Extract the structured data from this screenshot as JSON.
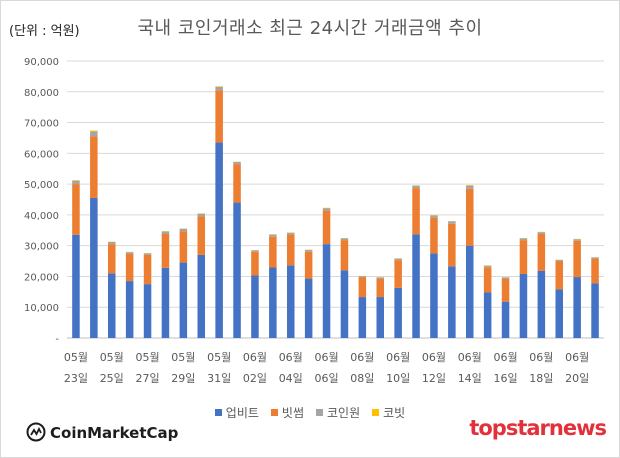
{
  "unit_label": "(단위 : 억원)",
  "chart_data": {
    "type": "bar",
    "stacked": true,
    "title": "국내 코인거래소 최근 24시간 거래금액 추이",
    "xlabel": "",
    "ylabel": "",
    "ylim": [
      0,
      90000
    ],
    "yticks": [
      "-",
      "10,000",
      "20,000",
      "30,000",
      "40,000",
      "50,000",
      "60,000",
      "70,000",
      "80,000",
      "90,000"
    ],
    "grid": true,
    "legend_position": "bottom",
    "x_tick_labels": [
      {
        "month": "05월",
        "day": "23일"
      },
      {
        "month": "05월",
        "day": "25일"
      },
      {
        "month": "05월",
        "day": "27일"
      },
      {
        "month": "05월",
        "day": "29일"
      },
      {
        "month": "05월",
        "day": "31일"
      },
      {
        "month": "06월",
        "day": "02일"
      },
      {
        "month": "06월",
        "day": "04일"
      },
      {
        "month": "06월",
        "day": "06일"
      },
      {
        "month": "06월",
        "day": "08일"
      },
      {
        "month": "06월",
        "day": "10일"
      },
      {
        "month": "06월",
        "day": "12일"
      },
      {
        "month": "06월",
        "day": "14일"
      },
      {
        "month": "06월",
        "day": "16일"
      },
      {
        "month": "06월",
        "day": "18일"
      },
      {
        "month": "06월",
        "day": "20일"
      }
    ],
    "categories": [
      "05-23",
      "05-24",
      "05-25",
      "05-26",
      "05-27",
      "05-28",
      "05-29",
      "05-30",
      "05-31",
      "06-01",
      "06-02",
      "06-03",
      "06-04",
      "06-05",
      "06-06",
      "06-07",
      "06-08",
      "06-09",
      "06-10",
      "06-11",
      "06-12",
      "06-13",
      "06-14",
      "06-15",
      "06-16",
      "06-17",
      "06-18",
      "06-19",
      "06-20",
      "06-21"
    ],
    "series": [
      {
        "name": "업비트",
        "color": "#4472c4",
        "values": [
          33500,
          45500,
          21000,
          18500,
          17500,
          22800,
          24500,
          27000,
          63500,
          44000,
          20300,
          22900,
          23600,
          19300,
          30500,
          22000,
          13300,
          13300,
          16300,
          33700,
          27500,
          23300,
          30000,
          14800,
          11800,
          20800,
          21800,
          15800,
          19800,
          17800
        ]
      },
      {
        "name": "빗썸",
        "color": "#ed7d31",
        "values": [
          16500,
          20000,
          9500,
          8800,
          9500,
          11000,
          10200,
          12500,
          17000,
          12500,
          7700,
          10000,
          10000,
          8700,
          11000,
          9800,
          6500,
          6000,
          9000,
          15000,
          11600,
          13800,
          18500,
          8200,
          7500,
          11000,
          12000,
          9200,
          11800,
          8000
        ]
      },
      {
        "name": "코인원",
        "color": "#a5a5a5",
        "values": [
          1100,
          1600,
          700,
          600,
          500,
          800,
          800,
          900,
          1100,
          700,
          500,
          700,
          600,
          600,
          700,
          600,
          300,
          400,
          500,
          800,
          700,
          800,
          1000,
          500,
          400,
          600,
          600,
          400,
          500,
          400
        ]
      },
      {
        "name": "코빗",
        "color": "#ffc000",
        "values": [
          200,
          300,
          100,
          100,
          100,
          100,
          100,
          100,
          200,
          100,
          100,
          100,
          100,
          100,
          100,
          100,
          50,
          50,
          100,
          100,
          100,
          100,
          200,
          100,
          50,
          100,
          100,
          50,
          100,
          50
        ]
      }
    ]
  },
  "branding": {
    "left_logo_text": "CoinMarketCap",
    "right_logo_text": "topstarnews"
  }
}
